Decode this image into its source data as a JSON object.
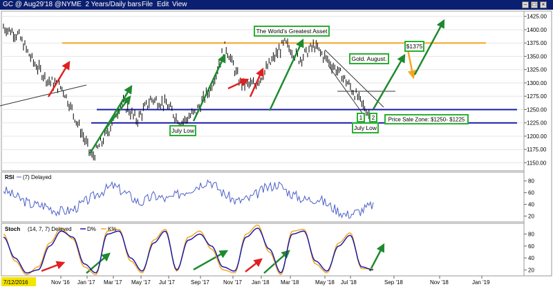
{
  "window": {
    "title": "GC @ Aug29'18 @NYME  2 Years/Daily bars",
    "menu": [
      "File",
      "Edit",
      "View"
    ],
    "controls": [
      "minimize",
      "maximize",
      "close"
    ]
  },
  "colors": {
    "titlebar": "#0b1f70",
    "price": "#000000",
    "resistance": "#f5a623",
    "support": "#1a1aa8",
    "arrow_green": "#1e8a2e",
    "arrow_red": "#e02020",
    "arrow_orange": "#f5a623",
    "rsi_line": "#4a5fc8",
    "stoch_d": "#1a1aa8",
    "stoch_k": "#f5a623",
    "label_border": "#28b030"
  },
  "chart_data": [
    {
      "type": "line",
      "panel": "price",
      "title": "GC @ Aug29'18 @NYME  2 Years/Daily bars",
      "ylim": [
        1135,
        1435
      ],
      "y_ticks": [
        "1425.00",
        "1400.00",
        "1375.00",
        "1350.00",
        "1325.00",
        "1300.00",
        "1275.00",
        "1250.00",
        "1225.00",
        "1200.00",
        "1175.00",
        "1150.00"
      ],
      "x_ticks": [
        "7/12/2016",
        "Nov '16",
        "Jan '17",
        "Mar '17",
        "May '17",
        "Jul '17",
        "Sep '17",
        "Nov '17",
        "Jan '18",
        "Mar '18",
        "May '18",
        "Jul '18",
        "Sep '18",
        "Nov '18",
        "Jan '19"
      ],
      "series": [
        {
          "x": [
            "Jul '16",
            "Aug '16",
            "Sep '16",
            "Oct '16",
            "Nov '16",
            "Dec '16",
            "Jan '17",
            "Feb '17",
            "Mar '17",
            "Apr '17",
            "May '17",
            "Jun '17",
            "Jul '17",
            "Aug '17",
            "Sep '17",
            "Oct '17",
            "Nov '17",
            "Dec '17",
            "Jan '18",
            "Feb '18",
            "Mar '18",
            "Apr '18",
            "May '18",
            "Jun '18",
            "Jul '18",
            "Aug '18"
          ],
          "values": [
            1405,
            1390,
            1340,
            1305,
            1290,
            1225,
            1160,
            1205,
            1265,
            1230,
            1270,
            1260,
            1225,
            1245,
            1290,
            1370,
            1300,
            1295,
            1335,
            1375,
            1345,
            1370,
            1340,
            1310,
            1270,
            1230
          ]
        }
      ],
      "levels": [
        {
          "value": 1375,
          "label": "$1375"
        },
        {
          "value": 1250,
          "label": ""
        },
        {
          "value": 1225,
          "label": ""
        }
      ],
      "annotations": [
        {
          "text": "The World's Greatest Asset"
        },
        {
          "text": "$1375"
        },
        {
          "text": "Gold. August."
        },
        {
          "text": "July Low"
        },
        {
          "text": "July Low"
        },
        {
          "text": "Price Sale Zone: $1250- $1225"
        },
        {
          "text": "1"
        },
        {
          "text": "2"
        }
      ]
    },
    {
      "type": "line",
      "panel": "rsi",
      "title": "RSI",
      "legend": "(7) Delayed",
      "ylim": [
        10,
        95
      ],
      "y_ticks": [
        "80",
        "60",
        "40",
        "20"
      ],
      "series": [
        {
          "name": "RSI",
          "values": [
            65,
            52,
            40,
            38,
            28,
            30,
            45,
            60,
            72,
            58,
            42,
            55,
            48,
            60,
            70,
            82,
            60,
            45,
            50,
            66,
            75,
            58,
            48,
            50,
            35,
            22,
            28,
            40
          ]
        }
      ]
    },
    {
      "type": "line",
      "panel": "stoch",
      "title": "Stoch",
      "legend": "(14, 7, 7) Delayed",
      "legend_items": [
        "D%",
        "K%"
      ],
      "ylim": [
        10,
        98
      ],
      "y_ticks": [
        "80",
        "60",
        "40",
        "20"
      ],
      "series": [
        {
          "name": "D%",
          "values": [
            75,
            40,
            15,
            20,
            60,
            85,
            75,
            30,
            15,
            80,
            85,
            40,
            18,
            65,
            85,
            20,
            70,
            80,
            60,
            25,
            18,
            75,
            90,
            55,
            15,
            80,
            85,
            35,
            18,
            60,
            78,
            25,
            20
          ]
        },
        {
          "name": "K%",
          "values": [
            80,
            35,
            12,
            25,
            65,
            90,
            72,
            25,
            12,
            85,
            88,
            35,
            15,
            70,
            88,
            18,
            75,
            85,
            55,
            20,
            15,
            80,
            95,
            50,
            12,
            85,
            88,
            30,
            15,
            65,
            82,
            22,
            22
          ]
        }
      ]
    }
  ]
}
